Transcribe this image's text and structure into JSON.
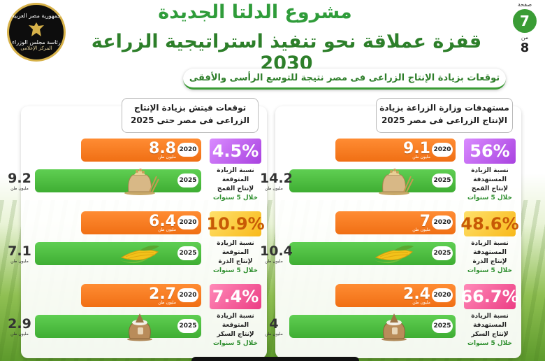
{
  "header": {
    "title_line1": "مشروع الدلتا الجديدة",
    "title_line2": "قفزة عملاقة نحو تنفيذ استراتيجية الزراعة 2030",
    "banner": "توقعات بزيادة الإنتاج الزراعى فى مصر نتيجة للتوسع الرأسى والأفقى"
  },
  "logo": {
    "line1": "جمهورية مصر العربية",
    "line2": "رئاسة مجلس الوزراء",
    "line3": "المركز الإعلامى"
  },
  "pagination": {
    "label": "صفحة",
    "page": "7",
    "of_label": "من",
    "total": "8"
  },
  "panels": [
    {
      "id": "left",
      "title_line1": "توقعات فيتش بزيادة الإنتاج",
      "title_line2": "الزراعى فى مصر حتى 2025",
      "rows": [
        {
          "crop": "wheat",
          "crop_icon": "wheat-sack-icon",
          "pct": "4.5%",
          "pct_color": "purple",
          "desc": [
            "نسبة الزيادة",
            "المتوقعة",
            "لإنتاج القمح",
            "خلال 5 سنوات"
          ],
          "y2020": "2020",
          "v2020": "8.8",
          "unit": "مليون طن",
          "y2025": "2025",
          "v2025": "9.2"
        },
        {
          "crop": "corn",
          "crop_icon": "corn-icon",
          "pct": "10.9%",
          "pct_color": "yellow",
          "desc": [
            "نسبة الزيادة",
            "المتوقعة",
            "لإنتاج الذرة",
            "خلال 5 سنوات"
          ],
          "y2020": "2020",
          "v2020": "6.4",
          "unit": "مليون طن",
          "y2025": "2025",
          "v2025": "7.1"
        },
        {
          "crop": "sugar",
          "crop_icon": "sugar-sack-icon",
          "pct": "7.4%",
          "pct_color": "pink",
          "desc": [
            "نسبة الزيادة",
            "المتوقعة",
            "لإنتاج السكر",
            "خلال 5 سنوات"
          ],
          "y2020": "2020",
          "v2020": "2.7",
          "unit": "مليون طن",
          "y2025": "2025",
          "v2025": "2.9"
        }
      ]
    },
    {
      "id": "right",
      "title_line1": "مستهدفات وزارة الزراعة بزيادة",
      "title_line2": "الإنتاج الزراعى فى مصر 2025",
      "rows": [
        {
          "crop": "wheat",
          "crop_icon": "wheat-sack-icon",
          "pct": "56%",
          "pct_color": "purple",
          "desc": [
            "نسبة الزيادة",
            "المستهدفة",
            "لإنتاج القمح",
            "خلال 5 سنوات"
          ],
          "y2020": "2020",
          "v2020": "9.1",
          "unit": "مليون طن",
          "y2025": "2025",
          "v2025": "14.2"
        },
        {
          "crop": "corn",
          "crop_icon": "corn-icon",
          "pct": "48.6%",
          "pct_color": "yellow",
          "desc": [
            "نسبة الزيادة",
            "المستهدفة",
            "لإنتاج الذرة",
            "خلال 5 سنوات"
          ],
          "y2020": "2020",
          "v2020": "7",
          "unit": "مليون طن",
          "y2025": "2025",
          "v2025": "10.4"
        },
        {
          "crop": "sugar",
          "crop_icon": "sugar-sack-icon",
          "pct": "66.7%",
          "pct_color": "pink",
          "desc": [
            "نسبة الزيادة",
            "المستهدفة",
            "لإنتاج السكر",
            "خلال 5 سنوات"
          ],
          "y2020": "2020",
          "v2020": "2.4",
          "unit": "مليون طن",
          "y2025": "2025",
          "v2025": "4"
        }
      ]
    }
  ],
  "colors": {
    "title_green": "#2f9c3a",
    "bar_2020": "#f06f14",
    "bar_2025": "#3fae33",
    "wheat_badge": "#a942e0",
    "corn_badge": "#f8b91a",
    "sugar_badge": "#ec3d84"
  }
}
